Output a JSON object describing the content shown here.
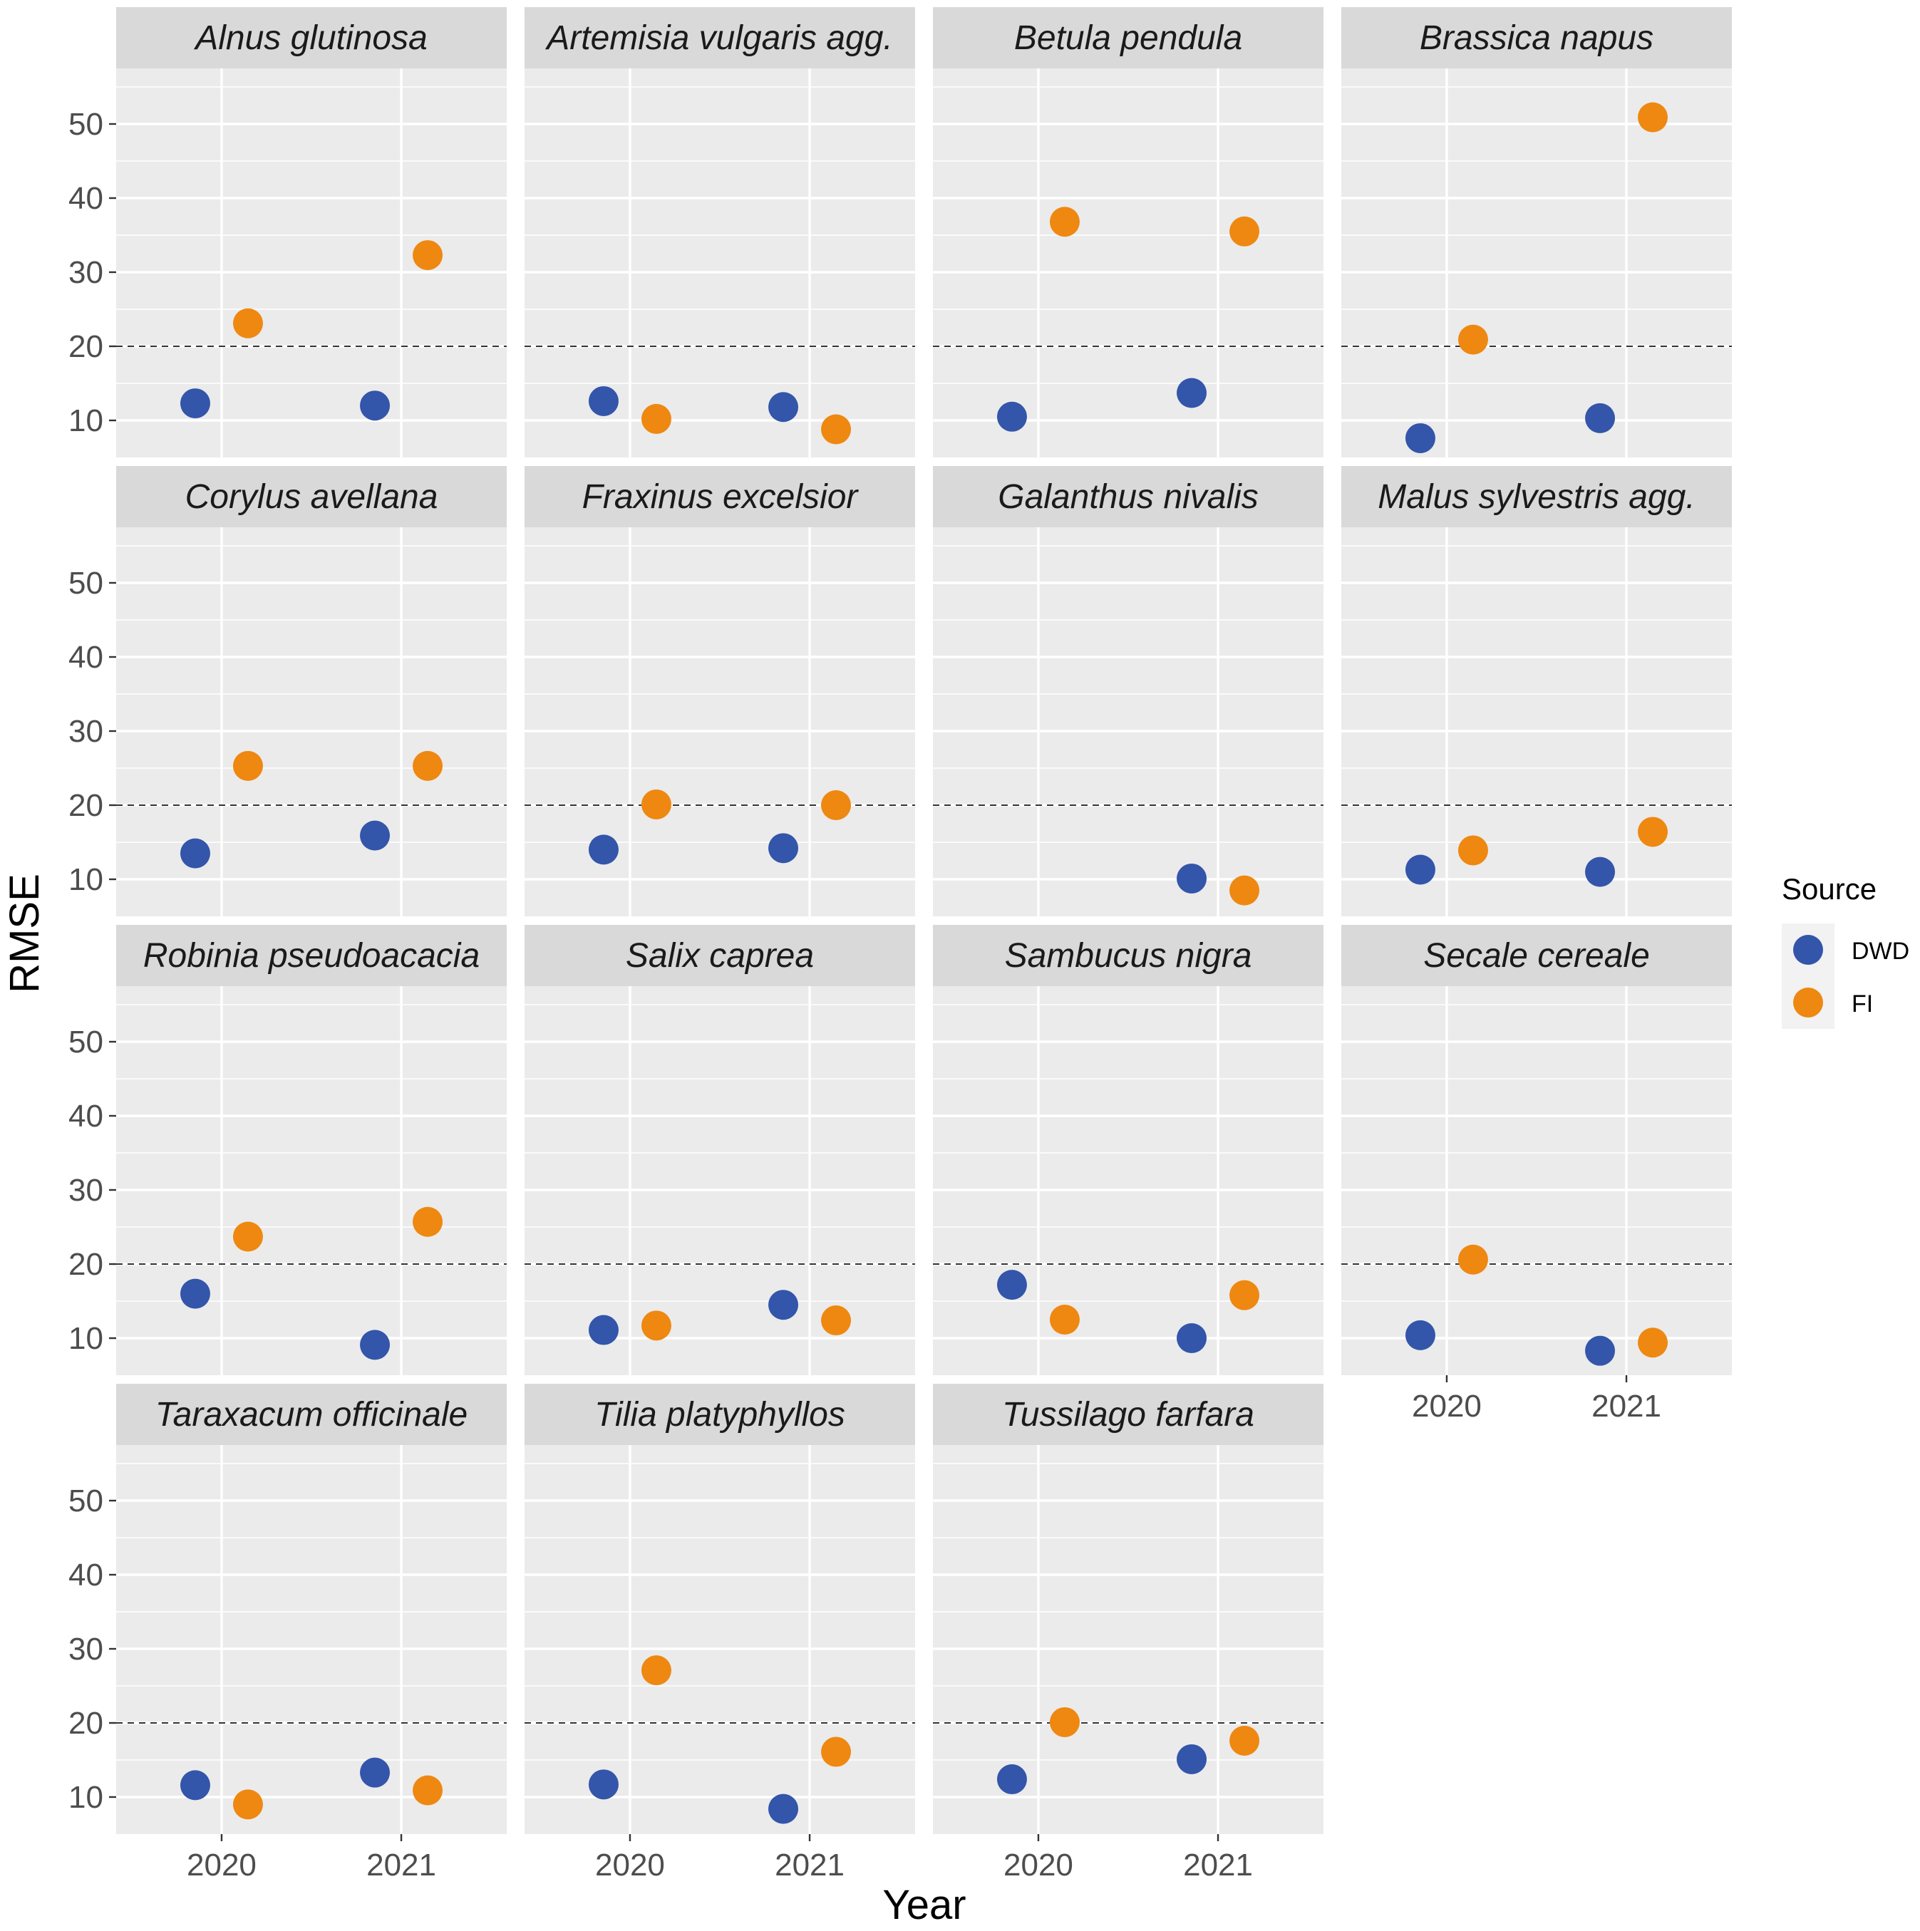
{
  "chart_data": {
    "type": "scatter",
    "facet_layout": "4 columns x 4 rows, wrapped",
    "xlabel": "Year",
    "ylabel": "RMSE",
    "x_categories": [
      "2020",
      "2021"
    ],
    "y_ticks": [
      "10",
      "20",
      "30",
      "40",
      "50"
    ],
    "ylim": [
      5,
      57.5
    ],
    "reference_line": {
      "y": 20,
      "style": "dashed"
    },
    "legend": {
      "title": "Source",
      "position": "right",
      "entries": [
        {
          "label": "DWD",
          "color": "#3355aa"
        },
        {
          "label": "FI",
          "color": "#ee8811"
        }
      ]
    },
    "panels": [
      {
        "title": "Alnus glutinosa",
        "DWD": [
          12.3,
          12.0
        ],
        "FI": [
          23.1,
          32.3
        ]
      },
      {
        "title": "Artemisia vulgaris agg.",
        "DWD": [
          12.6,
          11.8
        ],
        "FI": [
          10.2,
          8.8
        ]
      },
      {
        "title": "Betula pendula",
        "DWD": [
          10.5,
          13.7
        ],
        "FI": [
          36.8,
          35.5
        ]
      },
      {
        "title": "Brassica napus",
        "DWD": [
          7.6,
          10.3
        ],
        "FI": [
          20.9,
          50.9
        ]
      },
      {
        "title": "Corylus avellana",
        "DWD": [
          13.5,
          15.9
        ],
        "FI": [
          25.3,
          25.3
        ]
      },
      {
        "title": "Fraxinus excelsior",
        "DWD": [
          14.0,
          14.2
        ],
        "FI": [
          20.1,
          20.0
        ]
      },
      {
        "title": "Galanthus nivalis",
        "DWD": [
          null,
          10.1
        ],
        "FI": [
          null,
          8.5
        ]
      },
      {
        "title": "Malus sylvestris agg.",
        "DWD": [
          11.3,
          11.0
        ],
        "FI": [
          13.9,
          16.4
        ]
      },
      {
        "title": "Robinia pseudoacacia",
        "DWD": [
          16.0,
          9.1
        ],
        "FI": [
          23.7,
          25.7
        ]
      },
      {
        "title": "Salix caprea",
        "DWD": [
          11.1,
          14.5
        ],
        "FI": [
          11.7,
          12.4
        ]
      },
      {
        "title": "Sambucus nigra",
        "DWD": [
          17.2,
          10.0
        ],
        "FI": [
          12.5,
          15.8
        ]
      },
      {
        "title": "Secale cereale",
        "DWD": [
          10.4,
          8.3
        ],
        "FI": [
          20.6,
          9.4
        ]
      },
      {
        "title": "Taraxacum officinale",
        "DWD": [
          11.6,
          13.3
        ],
        "FI": [
          9.0,
          10.9
        ]
      },
      {
        "title": "Tilia platyphyllos",
        "DWD": [
          11.7,
          8.4
        ],
        "FI": [
          27.1,
          16.1
        ]
      },
      {
        "title": "Tussilago farfara",
        "DWD": [
          12.4,
          15.1
        ],
        "FI": [
          20.1,
          17.6
        ]
      }
    ]
  }
}
